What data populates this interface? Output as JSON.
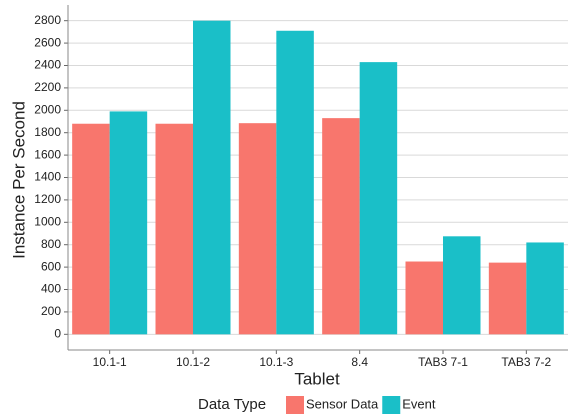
{
  "chart_data": {
    "type": "bar",
    "x_label": "Tablet",
    "y_label": "Instance Per Second",
    "categories": [
      "10.1-1",
      "10.1-2",
      "10.1-3",
      "8.4",
      "TAB3 7-1",
      "TAB3 7-2"
    ],
    "series": [
      {
        "name": "Sensor Data",
        "color": "#F8766D",
        "values": [
          1880,
          1880,
          1885,
          1930,
          650,
          640
        ]
      },
      {
        "name": "Event",
        "color": "#1ABFC8",
        "values": [
          1990,
          2800,
          2710,
          2430,
          875,
          820
        ]
      }
    ],
    "ylim": [
      -140,
      2940
    ],
    "yticks": [
      0,
      200,
      400,
      600,
      800,
      1000,
      1200,
      1400,
      1600,
      1800,
      2000,
      2200,
      2400,
      2600,
      2800
    ],
    "grid": true,
    "legend_title": "Data Type",
    "legend_position": "bottom"
  }
}
